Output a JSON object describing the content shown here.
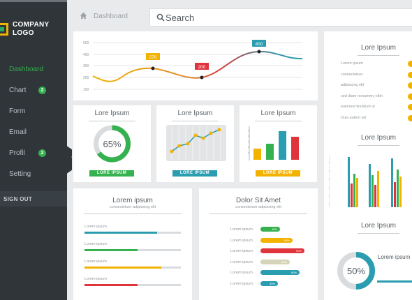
{
  "brand": {
    "logo_line1": "COMPANY",
    "logo_line2": "LOGO"
  },
  "sidebar": {
    "items": [
      {
        "label": "Dashboard",
        "badge": ""
      },
      {
        "label": "Chart",
        "badge": "2"
      },
      {
        "label": "Form",
        "badge": ""
      },
      {
        "label": "Email",
        "badge": ""
      },
      {
        "label": "Profil",
        "badge": "2"
      },
      {
        "label": "Setting",
        "badge": ""
      }
    ],
    "signout": "SIGN OUT"
  },
  "header": {
    "breadcrumb": "Dashboard",
    "search_placeholder": "Search"
  },
  "line_chart": {
    "yticks": [
      "500",
      "400",
      "300",
      "200",
      "100"
    ],
    "callouts": [
      "270",
      "200",
      "400"
    ]
  },
  "card_donut": {
    "title": "Lore Ipsum",
    "value": "65%",
    "button": "LORE IPSUM",
    "percent": 65
  },
  "card_scatter": {
    "title": "Lore Ipsum",
    "button": "LORE IPSUM"
  },
  "card_bars": {
    "title": "Lore Ipsum",
    "button": "LORE IPSUM"
  },
  "card_progress": {
    "title": "Lorem ipsum",
    "subtitle": "consectetuer adipiscing elit",
    "items": [
      {
        "label": "Lorem ipsum",
        "value": 0.75,
        "color": "#2a9db0"
      },
      {
        "label": "Lorem ipsum",
        "value": 0.55,
        "color": "#35b14f"
      },
      {
        "label": "Lorem ipsum",
        "value": 0.8,
        "color": "#f2b200"
      },
      {
        "label": "Lorem ipsum",
        "value": 0.55,
        "color": "#e0343c"
      }
    ]
  },
  "card_hbars": {
    "title": "Dolor Sit Amet",
    "subtitle": "consectetuer adipiscing elit",
    "items": [
      {
        "label": "Lorem ipsum",
        "value": 0.4,
        "color": "#35b14f",
        "tag": "40%"
      },
      {
        "label": "Lorem ipsum",
        "value": 0.65,
        "color": "#f2b200",
        "tag": "65%"
      },
      {
        "label": "Lorem ipsum",
        "value": 0.9,
        "color": "#e0343c",
        "tag": "90%"
      },
      {
        "label": "Lorem ipsum",
        "value": 0.6,
        "color": "#d6d4b8",
        "tag": "60%"
      },
      {
        "label": "Lorem ipsum",
        "value": 0.8,
        "color": "#2a9db0",
        "tag": "80%"
      },
      {
        "label": "Lorem ipsum",
        "value": 0.35,
        "color": "#2a9db0",
        "tag": "35%"
      }
    ]
  },
  "right_panel": {
    "title1": "Lore Ipsum",
    "list": [
      "Lorem ipsum",
      "consectetuer",
      "adipiscing elit",
      "sed diam nonummy nibh",
      "euismod tincidunt ut",
      "Duis autem vel"
    ],
    "title2": "Lore Ipsum",
    "title3": "Lore Ipsum",
    "donut_value": "50%",
    "donut_caption": "Lorem ipsum",
    "donut_percent": 50
  },
  "colors": {
    "green": "#35b14f",
    "teal": "#2a9db0",
    "yellow": "#f2b200",
    "red": "#e0343c",
    "sidebar": "#2f3539"
  }
}
